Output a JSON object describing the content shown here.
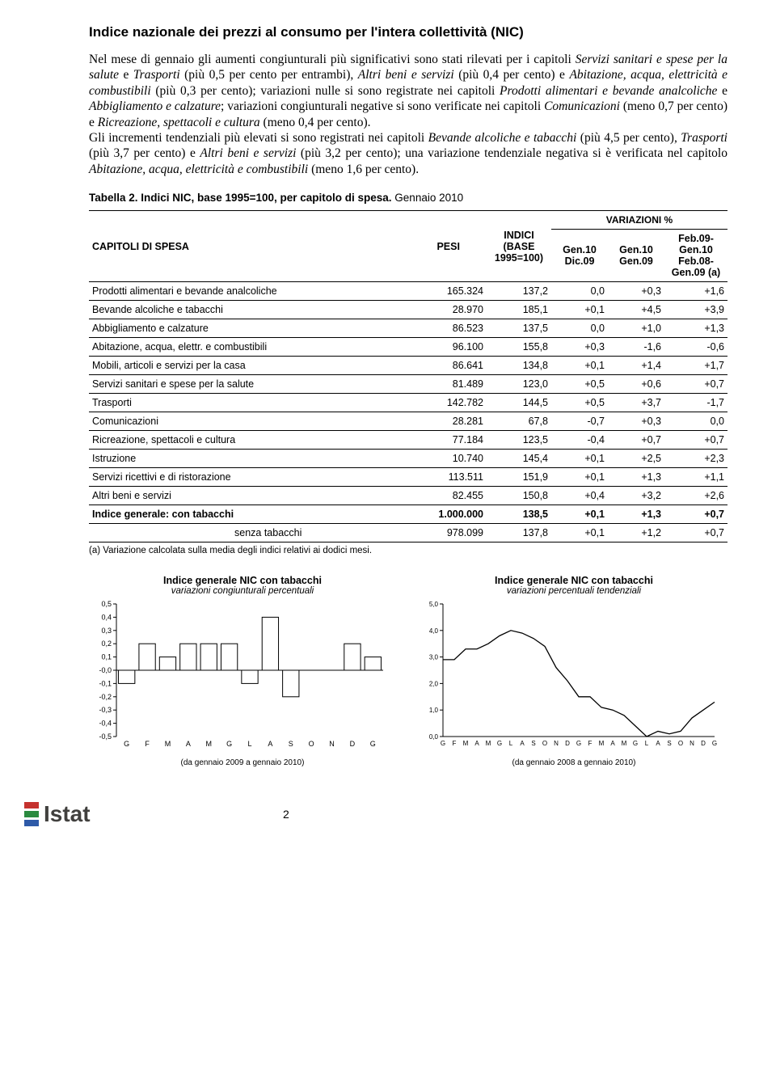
{
  "title": "Indice nazionale dei prezzi al consumo per l'intera collettività (NIC)",
  "paragraph": "Nel mese di gennaio gli aumenti congiunturali più significativi sono stati rilevati per i capitoli <em>Servizi sanitari e spese per la salute</em> e <em>Trasporti</em> (più 0,5 per cento per entrambi), <em>Altri beni e servizi</em> (più 0,4 per cento) e <em>Abitazione, acqua, elettricità e combustibili</em> (più 0,3 per cento); variazioni nulle si sono registrate nei capitoli <em>Prodotti alimentari e bevande analcoliche</em> e <em>Abbigliamento e calzature</em>; variazioni congiunturali negative si sono verificate nei capitoli <em>Comunicazioni</em> (meno 0,7 per cento) e <em>Ricreazione, spettacoli e cultura</em> (meno 0,4 per cento).<br>Gli incrementi tendenziali più elevati si sono registrati nei capitoli <em>Bevande alcoliche e tabacchi</em> (più 4,5 per cento), <em>Trasporti</em> (più 3,7 per cento) e <em>Altri beni e servizi</em> (più 3,2 per cento); una variazione tendenziale negativa si è verificata nel capitolo <em>Abitazione, acqua, elettricità e combustibili</em> (meno 1,6 per cento).",
  "table_caption_bold": "Tabella 2. Indici NIC, base 1995=100, per capitolo di spesa.",
  "table_caption_light": " Gennaio 2010",
  "headers": {
    "col1": "CAPITOLI DI SPESA",
    "col2": "PESI",
    "col3": "INDICI (BASE 1995=100)",
    "super": "VARIAZIONI %",
    "v1": "Gen.10 Dic.09",
    "v2": "Gen.10 Gen.09",
    "v3": "Feb.09-Gen.10 Feb.08-Gen.09 (a)"
  },
  "rows": [
    {
      "label": "Prodotti alimentari e bevande analcoliche",
      "pesi": "165.324",
      "ind": "137,2",
      "v1": "0,0",
      "v2": "+0,3",
      "v3": "+1,6"
    },
    {
      "label": "Bevande alcoliche e tabacchi",
      "pesi": "28.970",
      "ind": "185,1",
      "v1": "+0,1",
      "v2": "+4,5",
      "v3": "+3,9"
    },
    {
      "label": "Abbigliamento e calzature",
      "pesi": "86.523",
      "ind": "137,5",
      "v1": "0,0",
      "v2": "+1,0",
      "v3": "+1,3"
    },
    {
      "label": "Abitazione, acqua, elettr. e combustibili",
      "pesi": "96.100",
      "ind": "155,8",
      "v1": "+0,3",
      "v2": "-1,6",
      "v3": "-0,6"
    },
    {
      "label": "Mobili, articoli e servizi per la casa",
      "pesi": "86.641",
      "ind": "134,8",
      "v1": "+0,1",
      "v2": "+1,4",
      "v3": "+1,7"
    },
    {
      "label": "Servizi sanitari e spese per la salute",
      "pesi": "81.489",
      "ind": "123,0",
      "v1": "+0,5",
      "v2": "+0,6",
      "v3": "+0,7"
    },
    {
      "label": "Trasporti",
      "pesi": "142.782",
      "ind": "144,5",
      "v1": "+0,5",
      "v2": "+3,7",
      "v3": "-1,7"
    },
    {
      "label": "Comunicazioni",
      "pesi": "28.281",
      "ind": "67,8",
      "v1": "-0,7",
      "v2": "+0,3",
      "v3": "0,0"
    },
    {
      "label": "Ricreazione, spettacoli e cultura",
      "pesi": "77.184",
      "ind": "123,5",
      "v1": "-0,4",
      "v2": "+0,7",
      "v3": "+0,7"
    },
    {
      "label": "Istruzione",
      "pesi": "10.740",
      "ind": "145,4",
      "v1": "+0,1",
      "v2": "+2,5",
      "v3": "+2,3"
    },
    {
      "label": "Servizi ricettivi e di ristorazione",
      "pesi": "113.511",
      "ind": "151,9",
      "v1": "+0,1",
      "v2": "+1,3",
      "v3": "+1,1"
    },
    {
      "label": "Altri beni e servizi",
      "pesi": "82.455",
      "ind": "150,8",
      "v1": "+0,4",
      "v2": "+3,2",
      "v3": "+2,6"
    },
    {
      "label": "Indice generale: con tabacchi",
      "pesi": "1.000.000",
      "ind": "138,5",
      "v1": "+0,1",
      "v2": "+1,3",
      "v3": "+0,7",
      "bold": true
    },
    {
      "label": "senza tabacchi",
      "pesi": "978.099",
      "ind": "137,8",
      "v1": "+0,1",
      "v2": "+1,2",
      "v3": "+0,7",
      "indent": true
    }
  ],
  "footnote": "(a) Variazione calcolata sulla media degli indici relativi ai dodici mesi.",
  "chart1": {
    "title": "Indice generale NIC con tabacchi",
    "subtitle": "variazioni congiunturali percentuali",
    "caption": "(da gennaio 2009 a gennaio 2010)",
    "type": "bar",
    "categories": [
      "G",
      "F",
      "M",
      "A",
      "M",
      "G",
      "L",
      "A",
      "S",
      "O",
      "N",
      "D",
      "G"
    ],
    "values": [
      -0.1,
      0.2,
      0.1,
      0.2,
      0.2,
      0.2,
      -0.1,
      0.4,
      -0.2,
      0.0,
      0.0,
      0.2,
      0.1
    ],
    "ylim": [
      -0.5,
      0.5
    ],
    "ytick_step": 0.1,
    "bar_color": "#ffffff",
    "bar_border": "#000000",
    "axis_color": "#000000",
    "tick_fontsize": 9,
    "line_width": 1
  },
  "chart2": {
    "title": "Indice generale NIC con tabacchi",
    "subtitle": "variazioni percentuali tendenziali",
    "caption": "(da gennaio 2008 a gennaio 2010)",
    "type": "line",
    "categories": [
      "G",
      "F",
      "M",
      "A",
      "M",
      "G",
      "L",
      "A",
      "S",
      "O",
      "N",
      "D",
      "G",
      "F",
      "M",
      "A",
      "M",
      "G",
      "L",
      "A",
      "S",
      "O",
      "N",
      "D",
      "G"
    ],
    "values": [
      2.9,
      2.9,
      3.3,
      3.3,
      3.5,
      3.8,
      4.0,
      3.9,
      3.7,
      3.4,
      2.6,
      2.1,
      1.5,
      1.5,
      1.1,
      1.0,
      0.8,
      0.4,
      0.0,
      0.2,
      0.1,
      0.2,
      0.7,
      1.0,
      1.3
    ],
    "ylim": [
      0.0,
      5.0
    ],
    "ytick_step": 1.0,
    "line_color": "#000000",
    "axis_color": "#000000",
    "tick_fontsize": 8,
    "line_width": 1.3
  },
  "logo": {
    "text": "Istat",
    "colors": [
      "#c5322e",
      "#2a8a3f",
      "#2e5aa8"
    ]
  },
  "page": "2"
}
